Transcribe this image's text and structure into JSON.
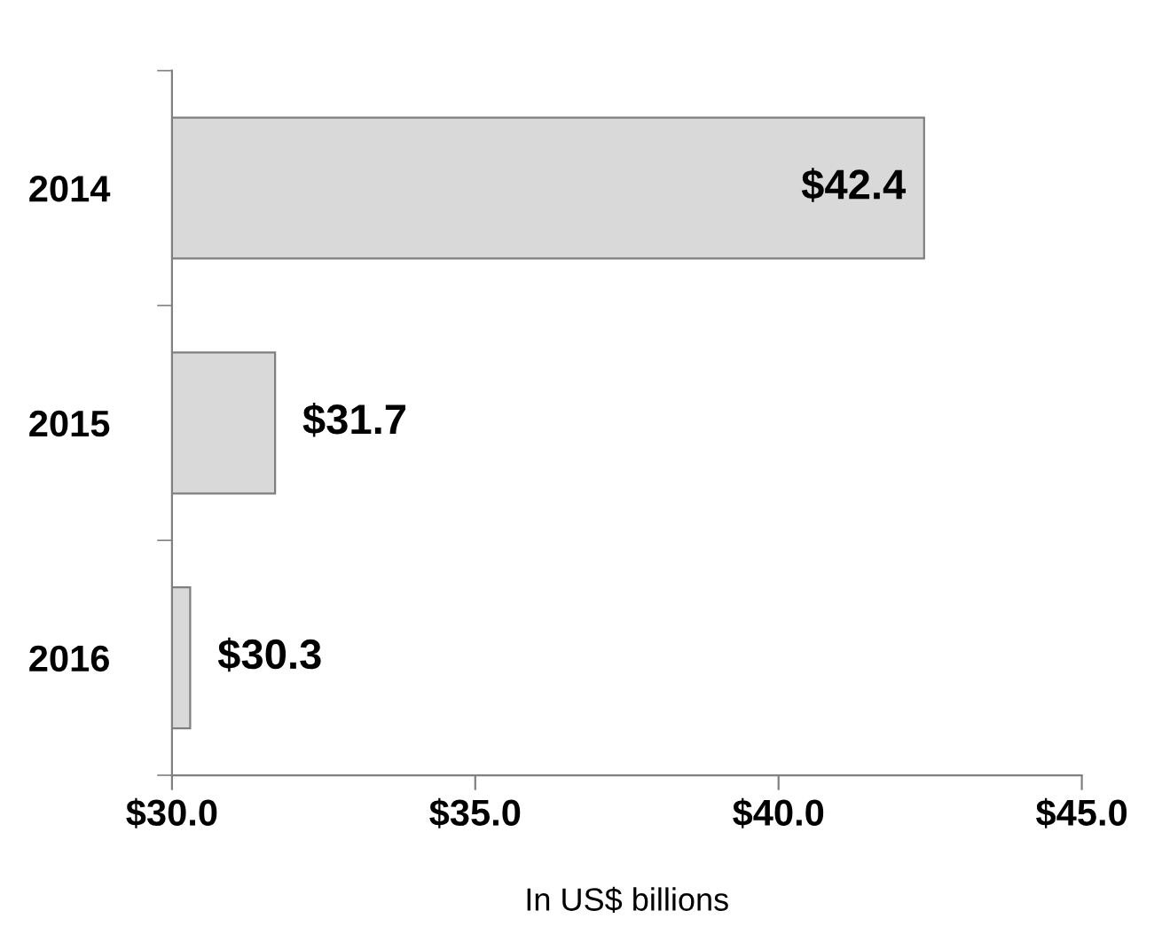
{
  "chart_data": {
    "type": "bar",
    "orientation": "horizontal",
    "xlabel": "In US$ billions",
    "categories": [
      "2014",
      "2015",
      "2016"
    ],
    "series": [
      {
        "color": "#d9d9d9",
        "values": [
          42.4,
          31.7,
          30.3
        ],
        "value_labels": [
          "$42.4",
          "$31.7",
          "$30.3"
        ]
      }
    ],
    "xlim": [
      30,
      45
    ],
    "xticks": [
      {
        "value": 30,
        "label": "$30.0"
      },
      {
        "value": 35,
        "label": "$35.0"
      },
      {
        "value": 40,
        "label": "$40.0"
      },
      {
        "value": 45,
        "label": "$45.0"
      }
    ],
    "grid": false,
    "legend": false
  }
}
